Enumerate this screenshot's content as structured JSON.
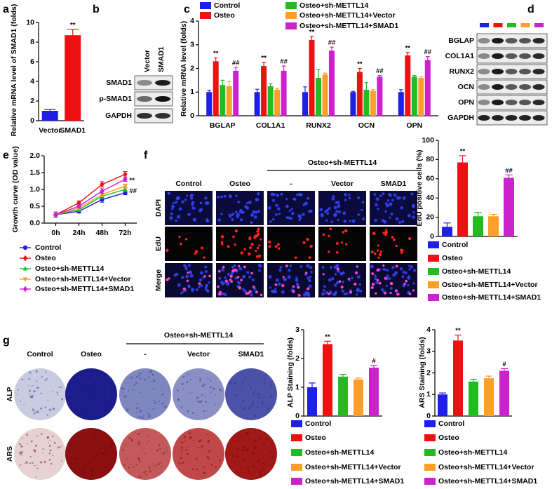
{
  "panel_labels": [
    "a",
    "b",
    "c",
    "d",
    "e",
    "f",
    "g"
  ],
  "blot_b": {
    "columns": [
      "Vector",
      "SMAD1"
    ],
    "rows": [
      "SMAD1",
      "p-SMAD1",
      "GAPDH"
    ]
  },
  "blot_d": {
    "lane_colors": [
      "#1f1fe6",
      "#ee1111",
      "#22bb22",
      "#ff9f2a",
      "#cc22cc"
    ],
    "rows": [
      "BGLAP",
      "COL1A1",
      "RUNX2",
      "OCN",
      "OPN",
      "GAPDH"
    ]
  },
  "images_f": {
    "columns": [
      "Control",
      "Osteo",
      "-",
      "Vector",
      "SMAD1"
    ],
    "group": "Osteo+sh-METTL14",
    "rows": [
      "DAPI",
      "EdU",
      "Merge"
    ]
  },
  "images_g": {
    "columns": [
      "Control",
      "Osteo",
      "-",
      "Vector",
      "SMAD1"
    ],
    "group": "Osteo+sh-METTL14",
    "rows": [
      "ALP",
      "ARS"
    ]
  },
  "chart_data": [
    {
      "type": "bar",
      "y_label": "Relative mRNA level of SMAD1 (folds)",
      "categories": [
        "Vector",
        "SMAD1"
      ],
      "values": [
        1.0,
        8.7
      ],
      "errors": [
        0.15,
        0.6
      ],
      "colors": [
        "#1f1fe6",
        "#ee1111"
      ],
      "significance": [
        null,
        "**"
      ],
      "ylim": [
        0,
        10
      ],
      "yticks": [
        0,
        2,
        4,
        6,
        8,
        10
      ]
    },
    {
      "type": "bar",
      "y_label": "Relative mRNA level (folds)",
      "categories": [
        "BGLAP",
        "COL1A1",
        "RUNX2",
        "OCN",
        "OPN"
      ],
      "ylim": [
        0,
        4
      ],
      "yticks": [
        0,
        1,
        2,
        3,
        4
      ],
      "series": [
        {
          "name": "Control",
          "color": "#1f1fe6",
          "values": [
            1.0,
            1.0,
            1.0,
            1.0,
            1.0
          ],
          "errors": [
            0.08,
            0.12,
            0.22,
            0.03,
            0.1
          ]
        },
        {
          "name": "Osteo",
          "color": "#ee1111",
          "values": [
            2.3,
            2.1,
            3.2,
            1.85,
            2.55
          ],
          "errors": [
            0.15,
            0.15,
            0.15,
            0.15,
            0.12
          ],
          "significance": [
            "**",
            "**",
            "**",
            "**",
            "**"
          ]
        },
        {
          "name": "Osteo+sh-METTL14",
          "color": "#22bb22",
          "values": [
            1.3,
            1.25,
            1.6,
            1.1,
            1.65
          ],
          "errors": [
            0.2,
            0.1,
            0.35,
            0.3,
            0.05
          ]
        },
        {
          "name": "Osteo+sh-METTL14+Vector",
          "color": "#ff9f2a",
          "values": [
            1.25,
            1.1,
            1.75,
            1.05,
            1.6
          ],
          "errors": [
            0.2,
            0.05,
            0.05,
            0.05,
            0.05
          ]
        },
        {
          "name": "Osteo+sh-METTL14+SMAD1",
          "color": "#cc22cc",
          "values": [
            1.9,
            1.9,
            2.75,
            1.65,
            2.35
          ],
          "errors": [
            0.15,
            0.2,
            0.15,
            0.05,
            0.15
          ],
          "significance": [
            "##",
            "##",
            "##",
            "##",
            "##"
          ]
        }
      ]
    },
    {
      "type": "line",
      "y_label": "Growth curve (OD value)",
      "categories": [
        "0h",
        "24h",
        "48h",
        "72h"
      ],
      "ylim": [
        0,
        2
      ],
      "yticks": [
        {
          "value": 0,
          "label": "0.0"
        },
        {
          "value": 0.5,
          "label": "0.5"
        },
        {
          "value": 1,
          "label": "1.0"
        },
        {
          "value": 1.5,
          "label": "1.5"
        },
        {
          "value": 2,
          "label": "2.0"
        }
      ],
      "series": [
        {
          "name": "Control",
          "color": "#1f1fe6",
          "marker": "circle",
          "values": [
            0.25,
            0.35,
            0.7,
            0.9
          ],
          "errors": [
            0.08,
            0.05,
            0.08,
            0.06
          ]
        },
        {
          "name": "Osteo",
          "color": "#ee1111",
          "marker": "diamond",
          "values": [
            0.25,
            0.6,
            1.15,
            1.45
          ],
          "errors": [
            0.08,
            0.06,
            0.08,
            0.08
          ],
          "end_label": "**"
        },
        {
          "name": "Osteo+sh-METTL14",
          "color": "#22bb22",
          "marker": "triangle",
          "values": [
            0.25,
            0.4,
            0.8,
            1.0
          ],
          "errors": [
            0.08,
            0.05,
            0.07,
            0.06
          ]
        },
        {
          "name": "Osteo+sh-METTL14+Vector",
          "color": "#ff9f2a",
          "marker": "triangle-down",
          "values": [
            0.25,
            0.45,
            0.85,
            1.1
          ],
          "errors": [
            0.08,
            0.05,
            0.07,
            0.06
          ]
        },
        {
          "name": "Osteo+sh-METTL14+SMAD1",
          "color": "#cc22cc",
          "marker": "diamond",
          "values": [
            0.25,
            0.5,
            0.95,
            1.3
          ],
          "errors": [
            0.08,
            0.05,
            0.07,
            0.06
          ],
          "end_label": "##"
        }
      ]
    },
    {
      "type": "bar",
      "y_label": "EdU positive cells (%)",
      "categories": [
        null
      ],
      "ylim": [
        0,
        100
      ],
      "yticks": [
        0,
        20,
        40,
        60,
        80,
        100
      ],
      "series": [
        {
          "name": "Control",
          "color": "#1f1fe6",
          "values": [
            10
          ],
          "errors": [
            4
          ]
        },
        {
          "name": "Osteo",
          "color": "#ee1111",
          "values": [
            77
          ],
          "errors": [
            7
          ],
          "significance": [
            "**"
          ]
        },
        {
          "name": "Osteo+sh-METTL14",
          "color": "#22bb22",
          "values": [
            21
          ],
          "errors": [
            4
          ]
        },
        {
          "name": "Osteo+sh-METTL14+Vector",
          "color": "#ff9f2a",
          "values": [
            21
          ],
          "errors": [
            2
          ]
        },
        {
          "name": "Osteo+sh-METTL14+SMAD1",
          "color": "#cc22cc",
          "values": [
            61
          ],
          "errors": [
            3
          ],
          "significance": [
            "##"
          ]
        }
      ]
    },
    {
      "type": "bar",
      "y_label": "ALP Staining (folds)",
      "categories": [
        null
      ],
      "ylim": [
        0,
        3
      ],
      "yticks": [
        0,
        1,
        2,
        3
      ],
      "series": [
        {
          "name": "Control",
          "color": "#1f1fe6",
          "values": [
            1.0
          ],
          "errors": [
            0.15
          ]
        },
        {
          "name": "Osteo",
          "color": "#ee1111",
          "values": [
            2.5
          ],
          "errors": [
            0.1
          ],
          "significance": [
            "**"
          ]
        },
        {
          "name": "Osteo+sh-METTL14",
          "color": "#22bb22",
          "values": [
            1.37
          ],
          "errors": [
            0.08
          ]
        },
        {
          "name": "Osteo+sh-METTL14+Vector",
          "color": "#ff9f2a",
          "values": [
            1.27
          ],
          "errors": [
            0.05
          ]
        },
        {
          "name": "Osteo+sh-METTL14+SMAD1",
          "color": "#cc22cc",
          "values": [
            1.68
          ],
          "errors": [
            0.08
          ],
          "significance": [
            "#"
          ]
        }
      ]
    },
    {
      "type": "bar",
      "y_label": "ARS Staining (folds)",
      "categories": [
        null
      ],
      "ylim": [
        0,
        4
      ],
      "yticks": [
        0,
        1,
        2,
        3,
        4
      ],
      "series": [
        {
          "name": "Control",
          "color": "#1f1fe6",
          "values": [
            1.0
          ],
          "errors": [
            0.07
          ]
        },
        {
          "name": "Osteo",
          "color": "#ee1111",
          "values": [
            3.5
          ],
          "errors": [
            0.25
          ],
          "significance": [
            "**"
          ]
        },
        {
          "name": "Osteo+sh-METTL14",
          "color": "#22bb22",
          "values": [
            1.6
          ],
          "errors": [
            0.1
          ]
        },
        {
          "name": "Osteo+sh-METTL14+Vector",
          "color": "#ff9f2a",
          "values": [
            1.75
          ],
          "errors": [
            0.1
          ]
        },
        {
          "name": "Osteo+sh-METTL14+SMAD1",
          "color": "#cc22cc",
          "values": [
            2.1
          ],
          "errors": [
            0.1
          ],
          "significance": [
            "#"
          ]
        }
      ]
    }
  ]
}
